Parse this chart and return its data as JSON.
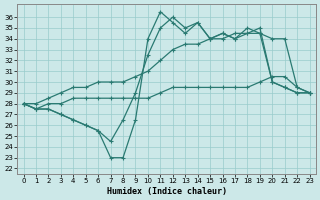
{
  "xlabel": "Humidex (Indice chaleur)",
  "bg_color": "#cce8e8",
  "grid_color": "#99cccc",
  "line_color": "#2a7a72",
  "xlim": [
    -0.5,
    23.5
  ],
  "ylim": [
    21.5,
    37.2
  ],
  "yticks": [
    22,
    23,
    24,
    25,
    26,
    27,
    28,
    29,
    30,
    31,
    32,
    33,
    34,
    35,
    36
  ],
  "xticks": [
    0,
    1,
    2,
    3,
    4,
    5,
    6,
    7,
    8,
    9,
    10,
    11,
    12,
    13,
    14,
    15,
    16,
    17,
    18,
    19,
    20,
    21,
    22,
    23
  ],
  "series": [
    {
      "x": [
        0,
        1,
        2,
        3,
        4,
        5,
        6,
        7,
        8,
        9,
        10,
        11,
        12,
        13,
        14,
        15,
        16,
        17,
        18,
        19,
        20,
        21,
        22,
        23
      ],
      "y": [
        28,
        27.5,
        27.5,
        27,
        26.5,
        26,
        25.5,
        23,
        23,
        26.5,
        34,
        36.5,
        35.5,
        34.5,
        35.5,
        34,
        34.5,
        34,
        35,
        34.5,
        30,
        29.5,
        29,
        29
      ]
    },
    {
      "x": [
        0,
        1,
        2,
        3,
        4,
        5,
        6,
        7,
        8,
        9,
        10,
        11,
        12,
        13,
        14,
        15,
        16,
        17,
        18,
        19,
        20,
        21,
        22,
        23
      ],
      "y": [
        28,
        27.5,
        27.5,
        27,
        26.5,
        26,
        25.5,
        24.5,
        26.5,
        29,
        32.5,
        35,
        36,
        35,
        35.5,
        34,
        34.5,
        34,
        34.5,
        35,
        30,
        29.5,
        29,
        29
      ]
    },
    {
      "x": [
        0,
        1,
        2,
        3,
        4,
        5,
        6,
        7,
        8,
        9,
        10,
        11,
        12,
        13,
        14,
        15,
        16,
        17,
        18,
        19,
        20,
        21,
        22,
        23
      ],
      "y": [
        28,
        28,
        28.5,
        29,
        29.5,
        29.5,
        30,
        30,
        30,
        30.5,
        31,
        32,
        33,
        33.5,
        33.5,
        34,
        34,
        34.5,
        34.5,
        34.5,
        34,
        34,
        29.5,
        29
      ]
    },
    {
      "x": [
        0,
        1,
        2,
        3,
        4,
        5,
        6,
        7,
        8,
        9,
        10,
        11,
        12,
        13,
        14,
        15,
        16,
        17,
        18,
        19,
        20,
        21,
        22,
        23
      ],
      "y": [
        28,
        27.5,
        28,
        28,
        28.5,
        28.5,
        28.5,
        28.5,
        28.5,
        28.5,
        28.5,
        29,
        29.5,
        29.5,
        29.5,
        29.5,
        29.5,
        29.5,
        29.5,
        30,
        30.5,
        30.5,
        29.5,
        29
      ]
    }
  ]
}
